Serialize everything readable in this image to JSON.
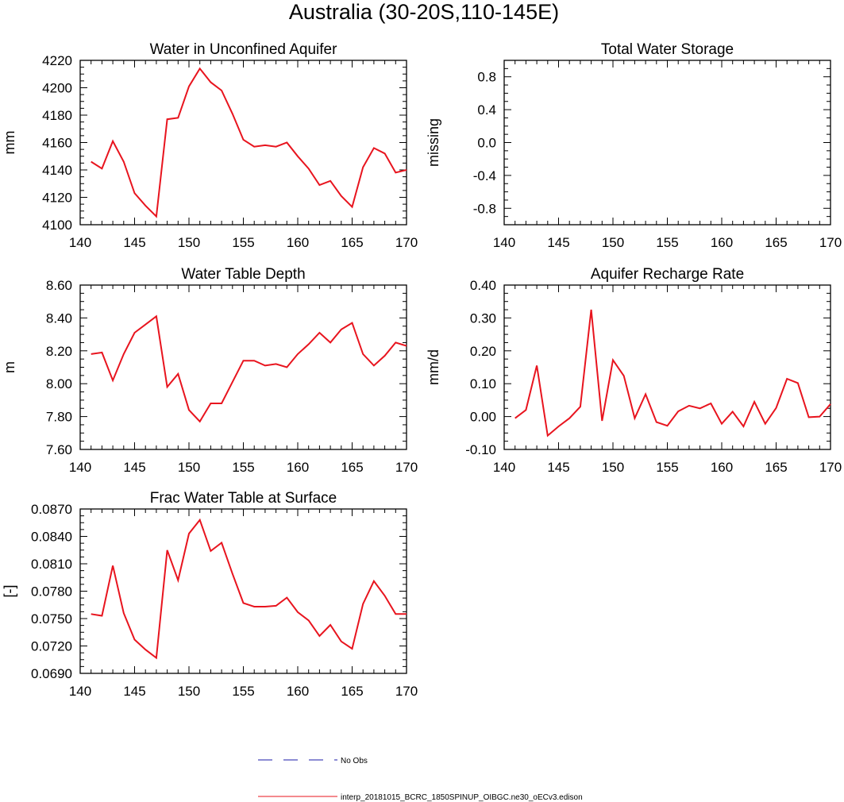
{
  "figure": {
    "title": "Australia (30-20S,110-145E)"
  },
  "colors": {
    "model_line": "#e8141e",
    "obs_line": "#1a1aa8",
    "axes": "#000000"
  },
  "chart_data": [
    {
      "type": "line",
      "title": "Water in Unconfined Aquifer",
      "xlabel": "",
      "ylabel": "mm",
      "xlim": [
        140,
        170
      ],
      "ylim": [
        4100,
        4220
      ],
      "xticks": [
        140,
        145,
        150,
        155,
        160,
        165,
        170
      ],
      "yticks": [
        4100,
        4120,
        4140,
        4160,
        4180,
        4200,
        4220
      ],
      "yticklabels": [
        "4100",
        "4120",
        "4140",
        "4160",
        "4180",
        "4200",
        "4220"
      ],
      "x": [
        141,
        142,
        143,
        144,
        145,
        146,
        147,
        148,
        149,
        150,
        151,
        152,
        153,
        154,
        155,
        156,
        157,
        158,
        159,
        160,
        161,
        162,
        163,
        164,
        165,
        166,
        167,
        168,
        169,
        170
      ],
      "series": [
        {
          "name": "interp_20181015_BCRC_1850SPINUP_OIBGC.ne30_oECv3.edison",
          "values": [
            4146,
            4141,
            4161,
            4146,
            4123,
            4114,
            4106,
            4177,
            4178,
            4201,
            4214,
            4204,
            4198,
            4181,
            4162,
            4157,
            4158,
            4157,
            4160,
            4150,
            4141,
            4129,
            4132,
            4121,
            4113,
            4142,
            4156,
            4152,
            4138,
            4140
          ]
        }
      ]
    },
    {
      "type": "line",
      "title": "Total Water Storage",
      "xlabel": "",
      "ylabel": "missing",
      "xlim": [
        140,
        170
      ],
      "ylim": [
        -1.0,
        1.0
      ],
      "xticks": [
        140,
        145,
        150,
        155,
        160,
        165,
        170
      ],
      "yticks": [
        -0.8,
        -0.4,
        0.0,
        0.4,
        0.8
      ],
      "yticklabels": [
        "-0.8",
        "-0.4",
        "0.0",
        "0.4",
        "0.8"
      ],
      "x": [],
      "series": []
    },
    {
      "type": "line",
      "title": "Water Table Depth",
      "xlabel": "",
      "ylabel": "m",
      "xlim": [
        140,
        170
      ],
      "ylim": [
        7.6,
        8.6
      ],
      "xticks": [
        140,
        145,
        150,
        155,
        160,
        165,
        170
      ],
      "yticks": [
        7.6,
        7.8,
        8.0,
        8.2,
        8.4,
        8.6
      ],
      "yticklabels": [
        "7.60",
        "7.80",
        "8.00",
        "8.20",
        "8.40",
        "8.60"
      ],
      "x": [
        141,
        142,
        143,
        144,
        145,
        146,
        147,
        148,
        149,
        150,
        151,
        152,
        153,
        154,
        155,
        156,
        157,
        158,
        159,
        160,
        161,
        162,
        163,
        164,
        165,
        166,
        167,
        168,
        169,
        170
      ],
      "series": [
        {
          "name": "interp_20181015_BCRC_1850SPINUP_OIBGC.ne30_oECv3.edison",
          "values": [
            8.18,
            8.19,
            8.02,
            8.18,
            8.31,
            8.36,
            8.41,
            7.98,
            8.06,
            7.84,
            7.77,
            7.88,
            7.88,
            8.01,
            8.14,
            8.14,
            8.11,
            8.12,
            8.1,
            8.18,
            8.24,
            8.31,
            8.25,
            8.33,
            8.37,
            8.18,
            8.11,
            8.17,
            8.25,
            8.23
          ]
        }
      ]
    },
    {
      "type": "line",
      "title": "Aquifer Recharge Rate",
      "xlabel": "",
      "ylabel": "mm/d",
      "xlim": [
        140,
        170
      ],
      "ylim": [
        -0.1,
        0.4
      ],
      "xticks": [
        140,
        145,
        150,
        155,
        160,
        165,
        170
      ],
      "yticks": [
        -0.1,
        0.0,
        0.1,
        0.2,
        0.3,
        0.4
      ],
      "yticklabels": [
        "-0.10",
        "0.00",
        "0.10",
        "0.20",
        "0.30",
        "0.40"
      ],
      "x": [
        141,
        142,
        143,
        144,
        145,
        146,
        147,
        148,
        149,
        150,
        151,
        152,
        153,
        154,
        155,
        156,
        157,
        158,
        159,
        160,
        161,
        162,
        163,
        164,
        165,
        166,
        167,
        168,
        169,
        170
      ],
      "series": [
        {
          "name": "interp_20181015_BCRC_1850SPINUP_OIBGC.ne30_oECv3.edison",
          "values": [
            -0.005,
            0.02,
            0.155,
            -0.058,
            -0.03,
            -0.005,
            0.03,
            0.325,
            -0.013,
            0.172,
            0.124,
            -0.005,
            0.068,
            -0.017,
            -0.028,
            0.016,
            0.033,
            0.025,
            0.04,
            -0.022,
            0.015,
            -0.03,
            0.045,
            -0.022,
            0.026,
            0.115,
            0.102,
            -0.002,
            0.0,
            0.038
          ]
        }
      ]
    },
    {
      "type": "line",
      "title": "Frac Water Table at Surface",
      "xlabel": "",
      "ylabel": "[-]",
      "xlim": [
        140,
        170
      ],
      "ylim": [
        0.069,
        0.087
      ],
      "xticks": [
        140,
        145,
        150,
        155,
        160,
        165,
        170
      ],
      "yticks": [
        0.069,
        0.072,
        0.075,
        0.078,
        0.081,
        0.084,
        0.087
      ],
      "yticklabels": [
        "0.0690",
        "0.0720",
        "0.0750",
        "0.0780",
        "0.0810",
        "0.0840",
        "0.0870"
      ],
      "x": [
        141,
        142,
        143,
        144,
        145,
        146,
        147,
        148,
        149,
        150,
        151,
        152,
        153,
        154,
        155,
        156,
        157,
        158,
        159,
        160,
        161,
        162,
        163,
        164,
        165,
        166,
        167,
        168,
        169,
        170
      ],
      "series": [
        {
          "name": "interp_20181015_BCRC_1850SPINUP_OIBGC.ne30_oECv3.edison",
          "values": [
            0.0755,
            0.0753,
            0.0808,
            0.0756,
            0.0727,
            0.0716,
            0.0707,
            0.0825,
            0.0792,
            0.0843,
            0.0858,
            0.0824,
            0.0833,
            0.0799,
            0.0767,
            0.0763,
            0.0763,
            0.0764,
            0.0773,
            0.0757,
            0.0748,
            0.0731,
            0.0743,
            0.0725,
            0.0717,
            0.0766,
            0.0791,
            0.0775,
            0.0755,
            0.0755
          ]
        }
      ]
    }
  ],
  "legend": {
    "obs_label": "No Obs",
    "model_label": "interp_20181015_BCRC_1850SPINUP_OIBGC.ne30_oECv3.edison"
  }
}
